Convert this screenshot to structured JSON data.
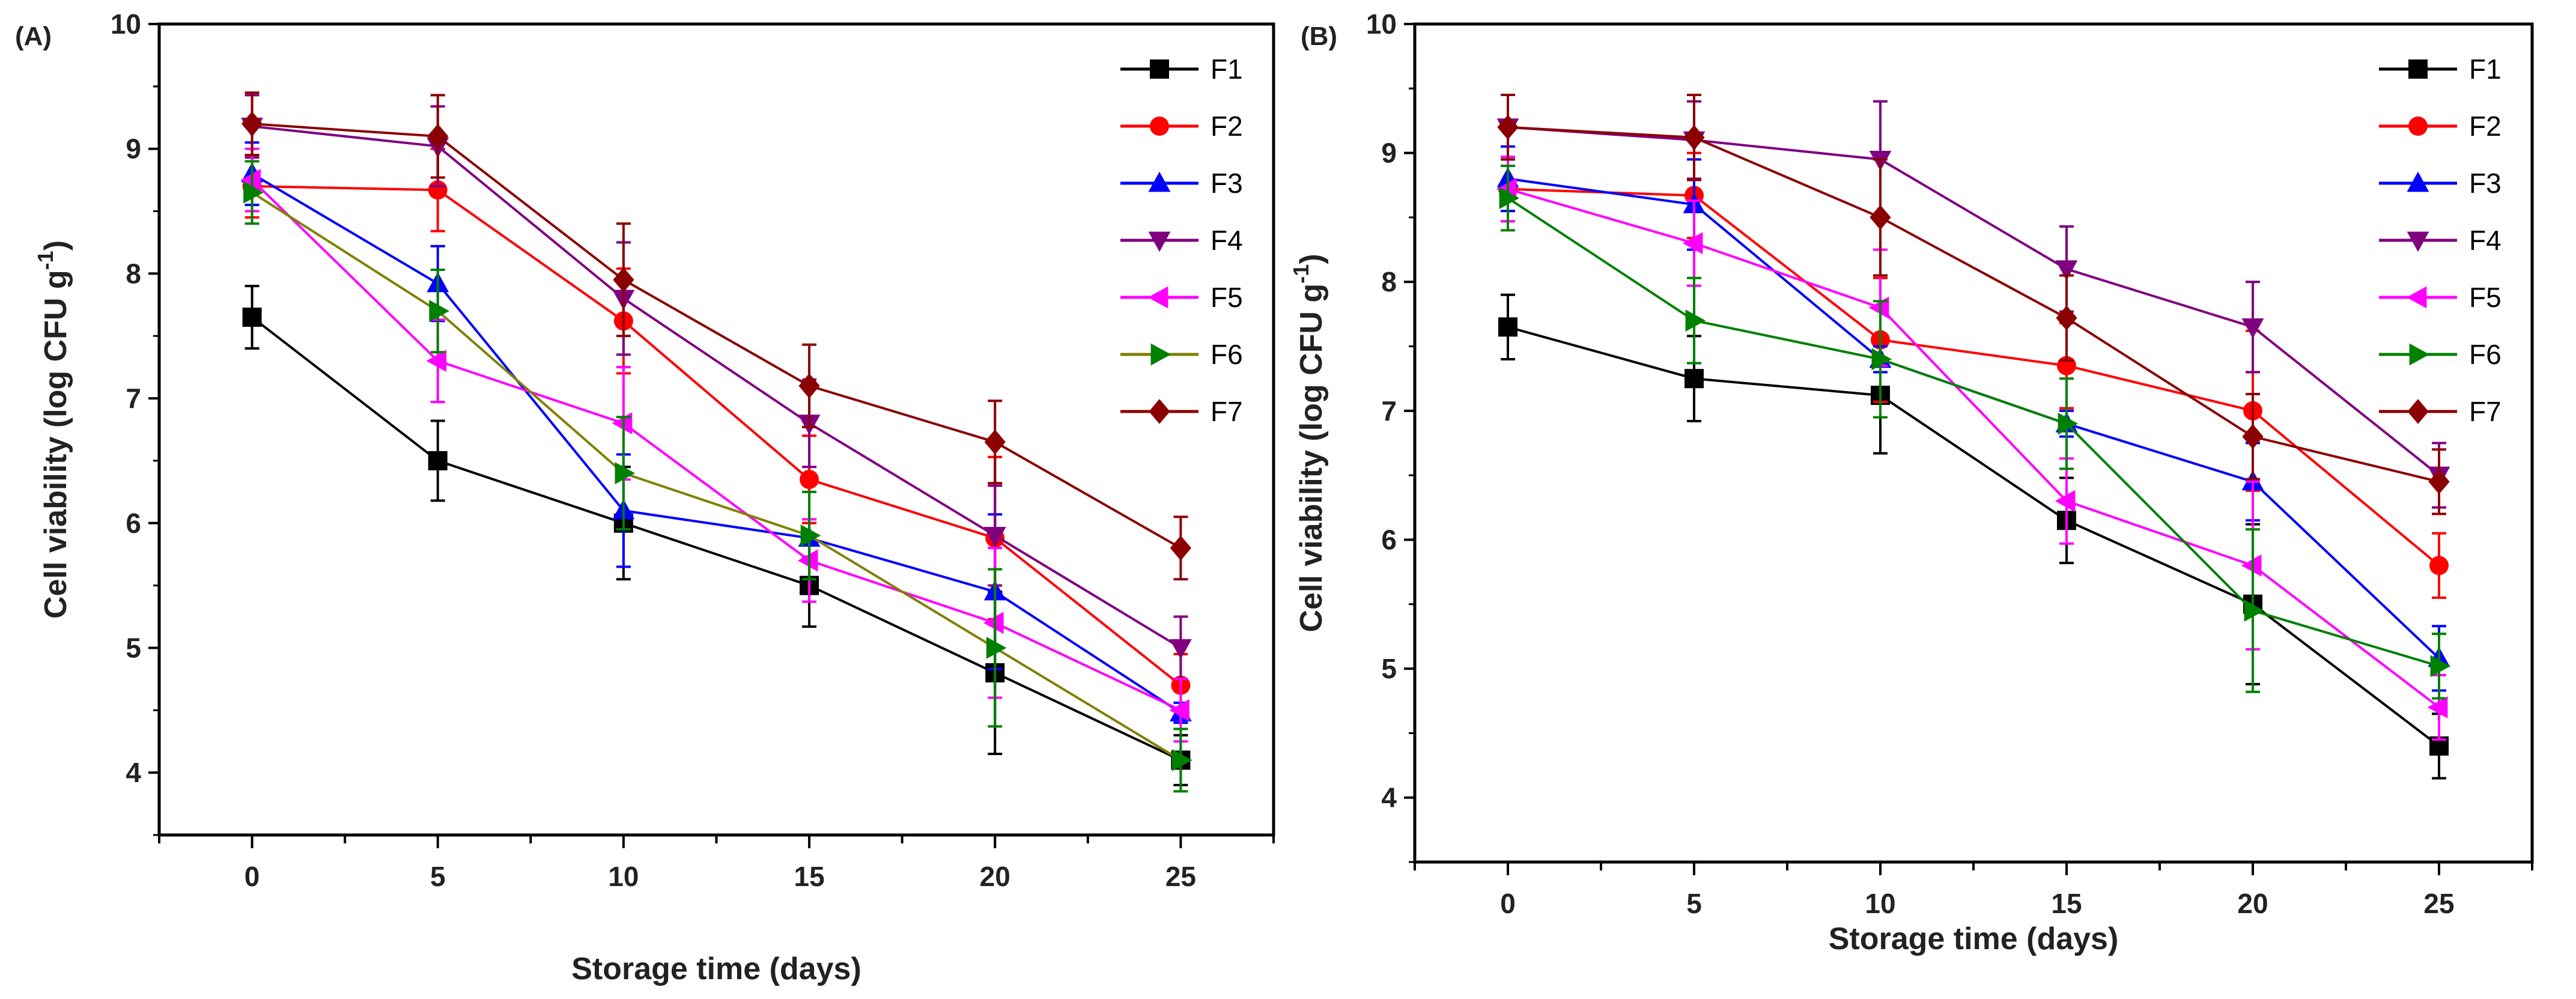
{
  "chart_data": [
    {
      "type": "line",
      "panel_label": "(A)",
      "xlabel": "Storage time (days)",
      "ylabel": "Cell viability (log CFU g",
      "ylabel_sup": "-1",
      "ylabel_end": ")",
      "x": [
        0,
        5,
        10,
        15,
        20,
        25
      ],
      "xticks": [
        "0",
        "5",
        "10",
        "15",
        "20",
        "25"
      ],
      "yticks": [
        "4",
        "5",
        "6",
        "7",
        "8",
        "9",
        "10"
      ],
      "xlim": [
        -2.5,
        27.5
      ],
      "ylim": [
        3.5,
        10
      ],
      "legend_position": "top-right",
      "series": [
        {
          "name": "F1",
          "color": "#000000",
          "line": "#000000",
          "marker": "square",
          "values": [
            7.65,
            6.5,
            6.0,
            5.5,
            4.8,
            4.1
          ],
          "err": [
            0.25,
            0.32,
            0.45,
            0.33,
            0.65,
            0.2
          ]
        },
        {
          "name": "F2",
          "color": "#ff0000",
          "line": "#ff0000",
          "marker": "circle",
          "values": [
            8.7,
            8.67,
            7.62,
            6.35,
            5.88,
            4.7
          ],
          "err": [
            0.25,
            0.33,
            0.42,
            0.35,
            0.65,
            0.25
          ]
        },
        {
          "name": "F3",
          "color": "#0000ff",
          "line": "#0000ff",
          "marker": "triangle-up",
          "values": [
            8.8,
            7.92,
            6.1,
            5.88,
            5.45,
            4.48
          ],
          "err": [
            0.25,
            0.3,
            0.45,
            0.15,
            0.62,
            0.08
          ]
        },
        {
          "name": "F4",
          "color": "#800080",
          "line": "#800080",
          "marker": "triangle-down",
          "values": [
            9.18,
            9.02,
            7.8,
            6.8,
            5.9,
            5.0
          ],
          "err": [
            0.25,
            0.32,
            0.45,
            0.35,
            0.4,
            0.25
          ]
        },
        {
          "name": "F5",
          "color": "#ff00ff",
          "line": "#ff00ff",
          "marker": "triangle-left",
          "values": [
            8.75,
            7.3,
            6.8,
            5.7,
            5.2,
            4.5
          ],
          "err": [
            0.25,
            0.33,
            0.45,
            0.33,
            0.6,
            0.25
          ]
        },
        {
          "name": "F6",
          "color": "#008000",
          "line": "#808000",
          "marker": "triangle-right",
          "values": [
            8.65,
            7.7,
            6.4,
            5.9,
            5.0,
            4.1
          ],
          "err": [
            0.25,
            0.33,
            0.45,
            0.35,
            0.63,
            0.25
          ]
        },
        {
          "name": "F7",
          "color": "#8b0000",
          "line": "#8b0000",
          "marker": "diamond",
          "values": [
            9.2,
            9.1,
            7.95,
            7.1,
            6.65,
            5.8
          ],
          "err": [
            0.25,
            0.33,
            0.45,
            0.33,
            0.33,
            0.25
          ]
        }
      ]
    },
    {
      "type": "line",
      "panel_label": "(B)",
      "xlabel": "Storage time (days)",
      "ylabel": "Cell viability (log CFU g",
      "ylabel_sup": "-1",
      "ylabel_end": ")",
      "x": [
        0,
        5,
        10,
        15,
        20,
        25
      ],
      "xticks": [
        "0",
        "5",
        "10",
        "15",
        "20",
        "25"
      ],
      "yticks": [
        "4",
        "5",
        "6",
        "7",
        "8",
        "9",
        "10"
      ],
      "xlim": [
        -2.5,
        27.5
      ],
      "ylim": [
        3.5,
        10
      ],
      "legend_position": "top-right",
      "series": [
        {
          "name": "F1",
          "color": "#000000",
          "line": "#000000",
          "marker": "square",
          "values": [
            7.65,
            7.25,
            7.12,
            6.15,
            5.5,
            4.4
          ],
          "err": [
            0.25,
            0.33,
            0.45,
            0.33,
            0.62,
            0.25
          ]
        },
        {
          "name": "F2",
          "color": "#ff0000",
          "line": "#ff0000",
          "marker": "circle",
          "values": [
            8.72,
            8.67,
            7.55,
            7.35,
            7.0,
            5.8
          ],
          "err": [
            0.25,
            0.33,
            0.48,
            0.33,
            0.62,
            0.25
          ]
        },
        {
          "name": "F3",
          "color": "#0000ff",
          "line": "#0000ff",
          "marker": "triangle-up",
          "values": [
            8.8,
            8.6,
            7.4,
            6.9,
            6.45,
            5.08
          ],
          "err": [
            0.25,
            0.35,
            0.1,
            0.1,
            0.3,
            0.25
          ]
        },
        {
          "name": "F4",
          "color": "#800080",
          "line": "#800080",
          "marker": "triangle-down",
          "values": [
            9.2,
            9.1,
            8.95,
            8.1,
            7.65,
            6.5
          ],
          "err": [
            0.25,
            0.3,
            0.45,
            0.33,
            0.35,
            0.25
          ]
        },
        {
          "name": "F5",
          "color": "#ff00ff",
          "line": "#ff00ff",
          "marker": "triangle-left",
          "values": [
            8.72,
            8.3,
            7.8,
            6.3,
            5.8,
            4.7
          ],
          "err": [
            0.25,
            0.33,
            0.45,
            0.33,
            0.65,
            0.25
          ]
        },
        {
          "name": "F6",
          "color": "#008000",
          "line": "#008000",
          "marker": "triangle-right",
          "values": [
            8.65,
            7.7,
            7.4,
            6.9,
            5.45,
            5.02
          ],
          "err": [
            0.25,
            0.33,
            0.45,
            0.35,
            0.63,
            0.25
          ]
        },
        {
          "name": "F7",
          "color": "#8b0000",
          "line": "#8b0000",
          "marker": "diamond",
          "values": [
            9.2,
            9.12,
            8.5,
            7.72,
            6.8,
            6.45
          ],
          "err": [
            0.25,
            0.33,
            0.45,
            0.33,
            0.33,
            0.25
          ]
        }
      ]
    }
  ]
}
